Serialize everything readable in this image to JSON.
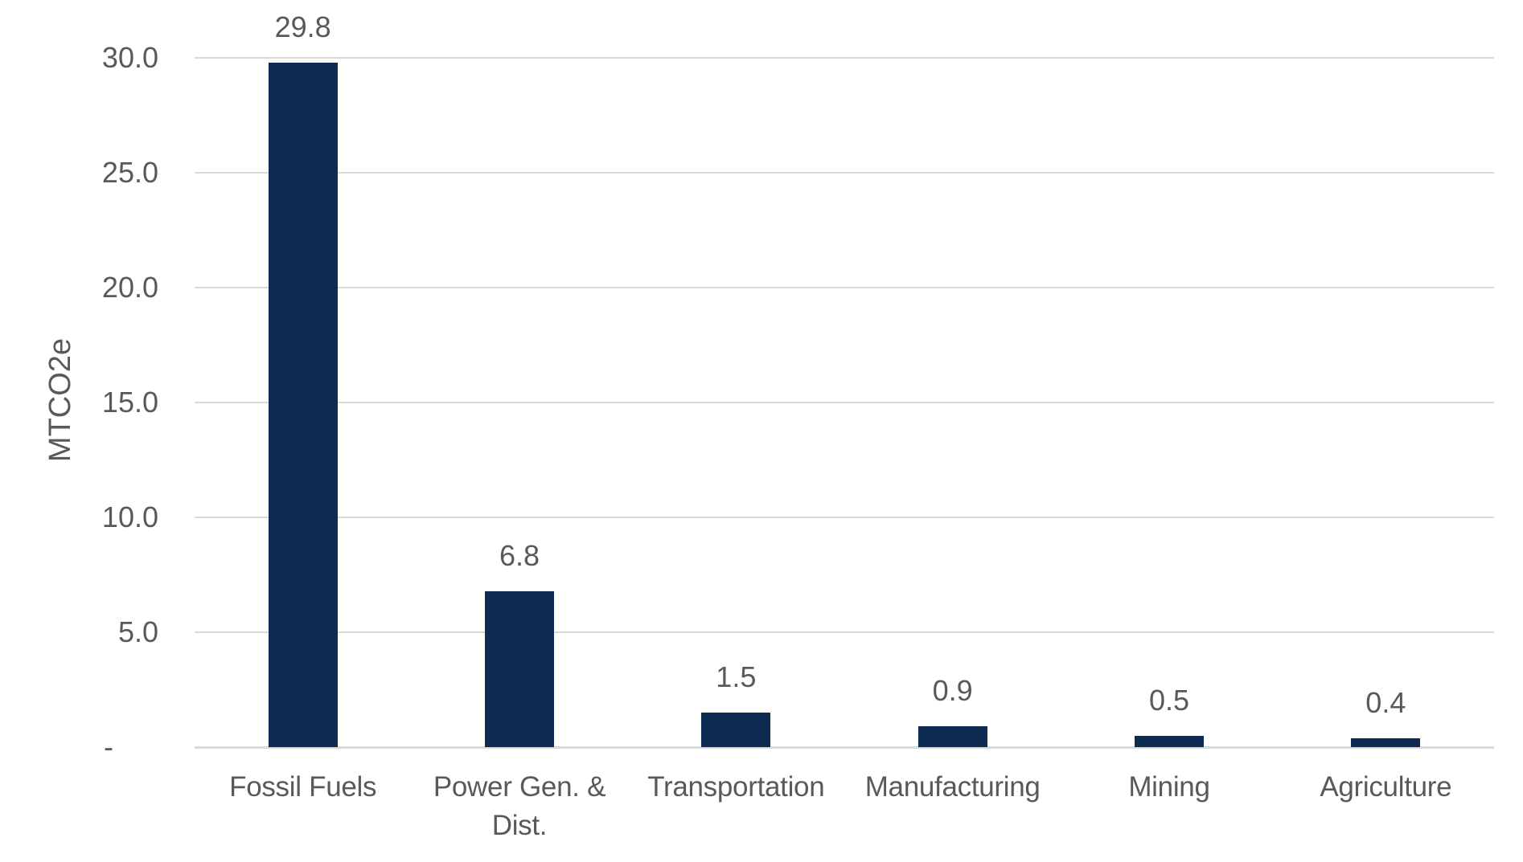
{
  "chart_data": {
    "type": "bar",
    "title": "",
    "ylabel": "MTCO2e",
    "xlabel": "",
    "categories": [
      "Fossil Fuels",
      "Power Gen. & Dist.",
      "Transportation",
      "Manufacturing",
      "Mining",
      "Agriculture"
    ],
    "values": [
      29.8,
      6.8,
      1.5,
      0.9,
      0.5,
      0.4
    ],
    "data_labels": [
      "29.8",
      "6.8",
      "1.5",
      "0.9",
      "0.5",
      "0.4"
    ],
    "ylim": [
      0,
      30
    ],
    "ytick_interval": 5,
    "yticks": [
      {
        "value": 0,
        "label": "-"
      },
      {
        "value": 5,
        "label": "5.0"
      },
      {
        "value": 10,
        "label": "10.0"
      },
      {
        "value": 15,
        "label": "15.0"
      },
      {
        "value": 20,
        "label": "20.0"
      },
      {
        "value": 25,
        "label": "25.0"
      },
      {
        "value": 30,
        "label": "30.0"
      }
    ],
    "grid": true,
    "legend": false,
    "colors": {
      "bar": "#0e2c52",
      "gridline": "#d9d9d9",
      "axis_line": "#d9d9d9",
      "text": "#595959",
      "background": "#ffffff"
    }
  }
}
